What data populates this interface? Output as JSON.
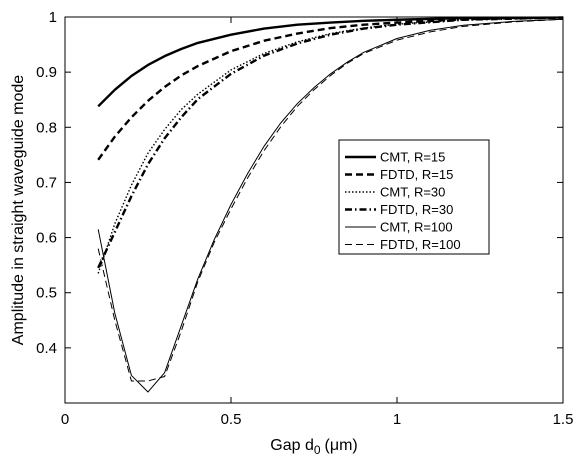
{
  "chart_data": {
    "type": "line",
    "title": "",
    "xlabel": "Gap d",
    "xlabel_sub": "0",
    "xlabel_unit": "(μm)",
    "ylabel": "Amplitude in straight waveguide mode",
    "xlim": [
      0,
      1.5
    ],
    "ylim": [
      0.3,
      1.0
    ],
    "xticks": [
      0,
      0.5,
      1,
      1.5
    ],
    "xtick_labels": [
      "0",
      "0.5",
      "1",
      "1.5"
    ],
    "yticks": [
      0.4,
      0.5,
      0.6,
      0.7,
      0.8,
      0.9,
      1.0
    ],
    "ytick_labels": [
      "0.4",
      "0.5",
      "0.6",
      "0.7",
      "0.8",
      "0.9",
      "1"
    ],
    "grid": false,
    "legend_position": "right-center",
    "series": [
      {
        "name": "CMT, R=15",
        "style": "solid-thick",
        "x": [
          0.1,
          0.15,
          0.2,
          0.25,
          0.3,
          0.35,
          0.4,
          0.5,
          0.6,
          0.7,
          0.8,
          0.9,
          1.0,
          1.2,
          1.5
        ],
        "y": [
          0.838,
          0.868,
          0.893,
          0.913,
          0.929,
          0.942,
          0.953,
          0.968,
          0.979,
          0.986,
          0.99,
          0.993,
          0.995,
          0.998,
          0.999
        ]
      },
      {
        "name": "FDTD, R=15",
        "style": "dashed-thick",
        "x": [
          0.1,
          0.15,
          0.2,
          0.25,
          0.3,
          0.35,
          0.4,
          0.5,
          0.6,
          0.7,
          0.8,
          0.9,
          1.0,
          1.2,
          1.5
        ],
        "y": [
          0.741,
          0.783,
          0.818,
          0.848,
          0.873,
          0.894,
          0.911,
          0.938,
          0.957,
          0.97,
          0.98,
          0.986,
          0.99,
          0.996,
          0.999
        ]
      },
      {
        "name": "CMT, R=30",
        "style": "dotted",
        "x": [
          0.1,
          0.15,
          0.2,
          0.25,
          0.3,
          0.35,
          0.4,
          0.5,
          0.6,
          0.7,
          0.8,
          0.9,
          1.0,
          1.2,
          1.5
        ],
        "y": [
          0.535,
          0.625,
          0.695,
          0.753,
          0.796,
          0.832,
          0.86,
          0.904,
          0.934,
          0.955,
          0.97,
          0.98,
          0.987,
          0.995,
          0.999
        ]
      },
      {
        "name": "FDTD, R=30",
        "style": "dashdot-thick",
        "x": [
          0.1,
          0.15,
          0.2,
          0.25,
          0.3,
          0.35,
          0.4,
          0.5,
          0.6,
          0.7,
          0.8,
          0.9,
          1.0,
          1.2,
          1.5
        ],
        "y": [
          0.545,
          0.61,
          0.675,
          0.733,
          0.78,
          0.818,
          0.851,
          0.897,
          0.93,
          0.952,
          0.968,
          0.979,
          0.986,
          0.995,
          0.999
        ]
      },
      {
        "name": "CMT, R=100",
        "style": "solid-thin",
        "x": [
          0.1,
          0.15,
          0.2,
          0.25,
          0.3,
          0.35,
          0.4,
          0.45,
          0.5,
          0.55,
          0.6,
          0.65,
          0.7,
          0.75,
          0.8,
          0.85,
          0.9,
          1.0,
          1.1,
          1.2,
          1.35,
          1.5
        ],
        "y": [
          0.615,
          0.463,
          0.35,
          0.32,
          0.355,
          0.44,
          0.525,
          0.597,
          0.66,
          0.716,
          0.766,
          0.808,
          0.843,
          0.872,
          0.897,
          0.918,
          0.936,
          0.961,
          0.976,
          0.985,
          0.992,
          0.996
        ]
      },
      {
        "name": "FDTD, R=100",
        "style": "dashed-thin",
        "x": [
          0.1,
          0.15,
          0.2,
          0.25,
          0.3,
          0.35,
          0.4,
          0.45,
          0.5,
          0.55,
          0.6,
          0.65,
          0.7,
          0.75,
          0.8,
          0.85,
          0.9,
          1.0,
          1.1,
          1.2,
          1.35,
          1.5
        ],
        "y": [
          0.58,
          0.45,
          0.34,
          0.34,
          0.348,
          0.43,
          0.52,
          0.592,
          0.652,
          0.708,
          0.758,
          0.801,
          0.838,
          0.868,
          0.894,
          0.916,
          0.934,
          0.958,
          0.973,
          0.983,
          0.991,
          0.996
        ]
      }
    ]
  }
}
